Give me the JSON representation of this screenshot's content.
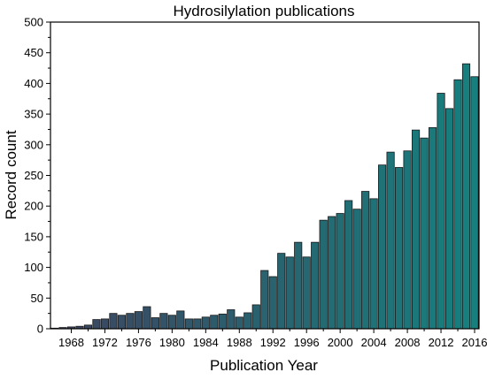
{
  "chart_data": {
    "type": "bar",
    "title": "Hydrosilylation publications",
    "xlabel": "Publication Year",
    "ylabel": "Record count",
    "ylim": [
      0,
      500
    ],
    "yticks": [
      0,
      50,
      100,
      150,
      200,
      250,
      300,
      350,
      400,
      450,
      500
    ],
    "xticks": [
      "1968",
      "1972",
      "1976",
      "1980",
      "1984",
      "1988",
      "1992",
      "1996",
      "2000",
      "2004",
      "2008",
      "2012",
      "2016"
    ],
    "grid": false,
    "legend": "none",
    "categories": [
      1966,
      1967,
      1968,
      1969,
      1970,
      1971,
      1972,
      1973,
      1974,
      1975,
      1976,
      1977,
      1978,
      1979,
      1980,
      1981,
      1982,
      1983,
      1984,
      1985,
      1986,
      1987,
      1988,
      1989,
      1990,
      1991,
      1992,
      1993,
      1994,
      1995,
      1996,
      1997,
      1998,
      1999,
      2000,
      2001,
      2002,
      2003,
      2004,
      2005,
      2006,
      2007,
      2008,
      2009,
      2010,
      2011,
      2012,
      2013,
      2014,
      2015,
      2016
    ],
    "values": [
      1,
      2,
      3,
      4,
      6,
      15,
      16,
      25,
      22,
      25,
      28,
      36,
      18,
      25,
      22,
      29,
      16,
      16,
      19,
      22,
      24,
      31,
      19,
      26,
      39,
      95,
      85,
      123,
      117,
      141,
      117,
      141,
      177,
      183,
      188,
      209,
      195,
      224,
      212,
      267,
      288,
      263,
      290,
      324,
      311,
      328,
      384,
      359,
      406,
      432,
      411
    ],
    "colors": {
      "bar_start": "#3d4460",
      "bar_end": "#16807e",
      "bar_edge": "#1a1a1a"
    }
  }
}
